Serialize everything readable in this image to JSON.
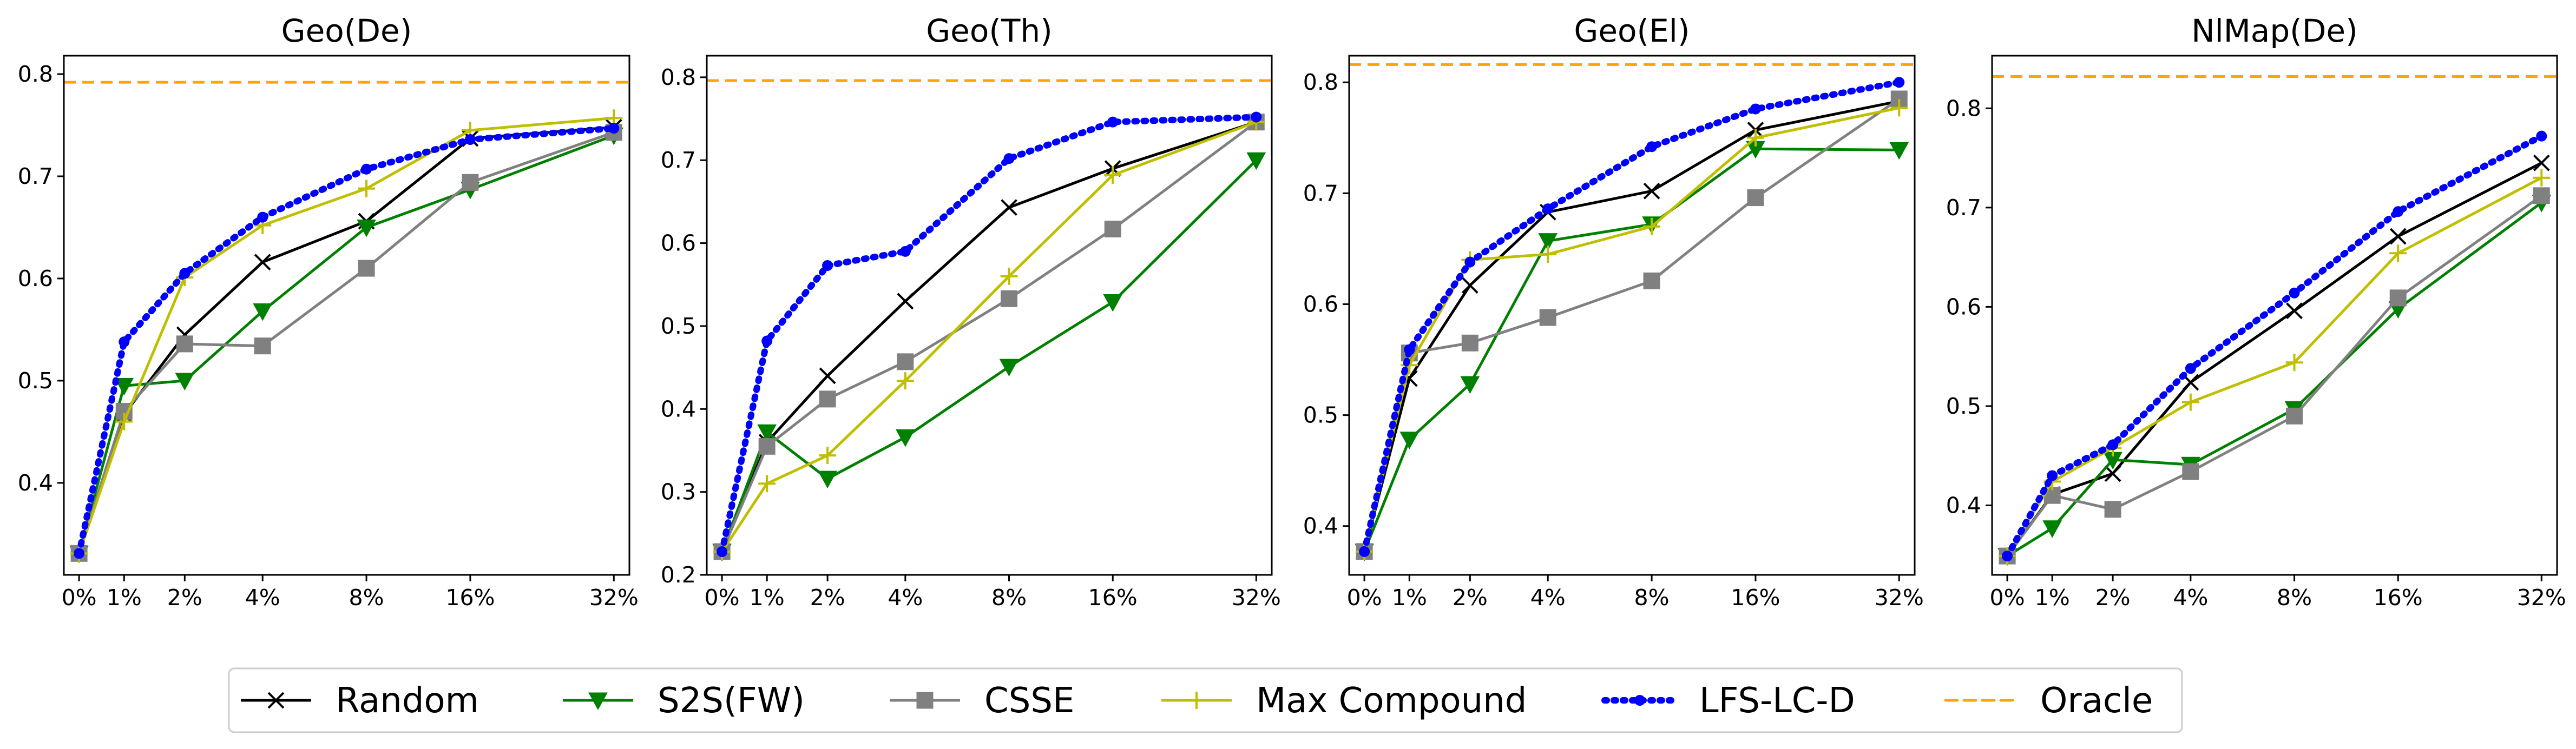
{
  "colors": {
    "Random": "#000000",
    "S2S(FW)": "#008000",
    "CSSE": "#808080",
    "Max Compound": "#bfbf00",
    "LFS-LC-D": "#0000ff",
    "Oracle": "#ffa500"
  },
  "legend": {
    "placement": "bottom-center",
    "entries": [
      {
        "name": "Random",
        "marker": "x",
        "line": "solid"
      },
      {
        "name": "S2S(FW)",
        "marker": "triangle-down",
        "line": "solid"
      },
      {
        "name": "CSSE",
        "marker": "square",
        "line": "solid"
      },
      {
        "name": "Max Compound",
        "marker": "plus",
        "line": "solid"
      },
      {
        "name": "LFS-LC-D",
        "marker": "dot",
        "line": "dotted"
      },
      {
        "name": "Oracle",
        "marker": "none",
        "line": "dashed"
      }
    ]
  },
  "chart_data": [
    {
      "type": "line",
      "title": "Geo(De)",
      "xlabel": "",
      "ylabel": "",
      "x_scale": "log2-like",
      "categories": [
        "0%",
        "1%",
        "2%",
        "4%",
        "8%",
        "16%",
        "32%"
      ],
      "ylim": [
        0.31,
        0.818
      ],
      "yticks": [
        "0.4",
        "0.5",
        "0.6",
        "0.7",
        "0.8"
      ],
      "grid": false,
      "oracle": 0.792,
      "series": [
        {
          "name": "Random",
          "values": [
            0.331,
            0.467,
            0.545,
            0.616,
            0.656,
            0.737,
            0.748
          ]
        },
        {
          "name": "S2S(FW)",
          "values": [
            0.331,
            0.495,
            0.5,
            0.568,
            0.65,
            0.687,
            0.74
          ]
        },
        {
          "name": "CSSE",
          "values": [
            0.331,
            0.47,
            0.536,
            0.534,
            0.61,
            0.694,
            0.743
          ]
        },
        {
          "name": "Max Compound",
          "values": [
            0.331,
            0.46,
            0.601,
            0.652,
            0.688,
            0.745,
            0.757
          ]
        },
        {
          "name": "LFS-LC-D",
          "values": [
            0.331,
            0.538,
            0.605,
            0.66,
            0.707,
            0.736,
            0.747
          ]
        }
      ]
    },
    {
      "type": "line",
      "title": "Geo(Th)",
      "xlabel": "",
      "ylabel": "",
      "x_scale": "log2-like",
      "categories": [
        "0%",
        "1%",
        "2%",
        "4%",
        "8%",
        "16%",
        "32%"
      ],
      "ylim": [
        0.2,
        0.826
      ],
      "yticks": [
        "0.2",
        "0.3",
        "0.4",
        "0.5",
        "0.6",
        "0.7",
        "0.8"
      ],
      "grid": false,
      "oracle": 0.796,
      "series": [
        {
          "name": "Random",
          "values": [
            0.228,
            0.36,
            0.44,
            0.53,
            0.643,
            0.69,
            0.746
          ]
        },
        {
          "name": "S2S(FW)",
          "values": [
            0.228,
            0.372,
            0.316,
            0.366,
            0.451,
            0.529,
            0.7
          ]
        },
        {
          "name": "CSSE",
          "values": [
            0.228,
            0.355,
            0.412,
            0.457,
            0.533,
            0.617,
            0.746
          ]
        },
        {
          "name": "Max Compound",
          "values": [
            0.228,
            0.31,
            0.344,
            0.434,
            0.56,
            0.682,
            0.746
          ]
        },
        {
          "name": "LFS-LC-D",
          "values": [
            0.228,
            0.482,
            0.573,
            0.59,
            0.702,
            0.746,
            0.752
          ]
        }
      ]
    },
    {
      "type": "line",
      "title": "Geo(El)",
      "xlabel": "",
      "ylabel": "",
      "x_scale": "log2-like",
      "categories": [
        "0%",
        "1%",
        "2%",
        "4%",
        "8%",
        "16%",
        "32%"
      ],
      "ylim": [
        0.356,
        0.824
      ],
      "yticks": [
        "0.4",
        "0.5",
        "0.6",
        "0.7",
        "0.8"
      ],
      "grid": false,
      "oracle": 0.816,
      "series": [
        {
          "name": "Random",
          "values": [
            0.377,
            0.533,
            0.617,
            0.683,
            0.702,
            0.757,
            0.783
          ]
        },
        {
          "name": "S2S(FW)",
          "values": [
            0.377,
            0.478,
            0.528,
            0.657,
            0.672,
            0.74,
            0.739
          ]
        },
        {
          "name": "CSSE",
          "values": [
            0.377,
            0.556,
            0.565,
            0.588,
            0.621,
            0.696,
            0.785
          ]
        },
        {
          "name": "Max Compound",
          "values": [
            0.377,
            0.545,
            0.64,
            0.645,
            0.67,
            0.75,
            0.777
          ]
        },
        {
          "name": "LFS-LC-D",
          "values": [
            0.377,
            0.559,
            0.638,
            0.686,
            0.742,
            0.776,
            0.8
          ]
        }
      ]
    },
    {
      "type": "line",
      "title": "NlMap(De)",
      "xlabel": "",
      "ylabel": "",
      "x_scale": "log2-like",
      "categories": [
        "0%",
        "1%",
        "2%",
        "4%",
        "8%",
        "16%",
        "32%"
      ],
      "ylim": [
        0.33,
        0.853
      ],
      "yticks": [
        "0.4",
        "0.5",
        "0.6",
        "0.7",
        "0.8"
      ],
      "grid": false,
      "oracle": 0.832,
      "series": [
        {
          "name": "Random",
          "values": [
            0.349,
            0.411,
            0.432,
            0.524,
            0.596,
            0.671,
            0.745
          ]
        },
        {
          "name": "S2S(FW)",
          "values": [
            0.349,
            0.377,
            0.446,
            0.441,
            0.497,
            0.598,
            0.705
          ]
        },
        {
          "name": "CSSE",
          "values": [
            0.349,
            0.41,
            0.396,
            0.434,
            0.49,
            0.609,
            0.712
          ]
        },
        {
          "name": "Max Compound",
          "values": [
            0.349,
            0.424,
            0.458,
            0.504,
            0.544,
            0.654,
            0.73
          ]
        },
        {
          "name": "LFS-LC-D",
          "values": [
            0.349,
            0.43,
            0.461,
            0.538,
            0.614,
            0.696,
            0.772
          ]
        }
      ]
    }
  ]
}
